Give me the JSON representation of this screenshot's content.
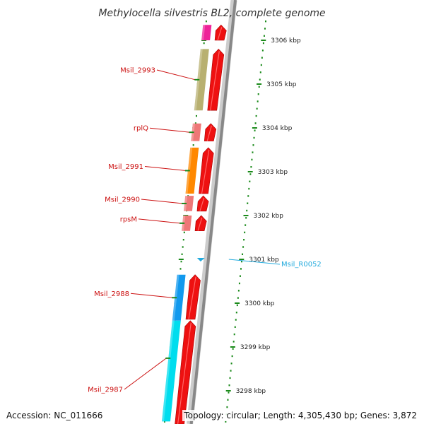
{
  "title": "Methylocella silvestris BL2, complete genome",
  "accession": "Accession: NC_011666",
  "summary": "Topology: circular; Length: 4,305,430 bp; Genes: 3,872",
  "colors": {
    "tick_green": "#1a8a1a",
    "label_red": "#cc1111",
    "label_cyan": "#22aadd",
    "backbone": "#888888",
    "backbone_light": "#cccccc"
  },
  "ticks": [
    {
      "label": "3306 kbp",
      "kbp": 3306
    },
    {
      "label": "3305 kbp",
      "kbp": 3305
    },
    {
      "label": "3304 kbp",
      "kbp": 3304
    },
    {
      "label": "3303 kbp",
      "kbp": 3303
    },
    {
      "label": "3302 kbp",
      "kbp": 3302
    },
    {
      "label": "3301 kbp",
      "kbp": 3301
    },
    {
      "label": "3300 kbp",
      "kbp": 3300
    },
    {
      "label": "3299 kbp",
      "kbp": 3299
    },
    {
      "label": "3298 kbp",
      "kbp": 3298
    }
  ],
  "features": [
    {
      "name": "",
      "color": "#ee2299",
      "kbp_start": 3306.35,
      "kbp_end": 3306.0,
      "labeled": false
    },
    {
      "name": "Msil_2993",
      "color": "#b8b070",
      "kbp_start": 3305.8,
      "kbp_end": 3304.4,
      "labeled": true
    },
    {
      "name": "rplQ",
      "color": "#ee7777",
      "kbp_start": 3304.1,
      "kbp_end": 3303.7,
      "labeled": true
    },
    {
      "name": "Msil_2991",
      "color": "#ff8800",
      "kbp_start": 3303.55,
      "kbp_end": 3302.5,
      "labeled": true
    },
    {
      "name": "Msil_2990",
      "color": "#ee7777",
      "kbp_start": 3302.45,
      "kbp_end": 3302.1,
      "labeled": true
    },
    {
      "name": "rpsM",
      "color": "#ee7777",
      "kbp_start": 3302.0,
      "kbp_end": 3301.65,
      "labeled": true
    },
    {
      "name": "Msil_2988",
      "color": "#1199ee",
      "kbp_start": 3300.65,
      "kbp_end": 3299.6,
      "labeled": true
    },
    {
      "name": "Msil_2987",
      "color": "#00ddee",
      "kbp_start": 3299.6,
      "kbp_end": 3297.3,
      "labeled": true
    }
  ],
  "rna_feature": {
    "name": "Msil_R0052",
    "color": "#22aadd",
    "kbp": 3301.0
  }
}
